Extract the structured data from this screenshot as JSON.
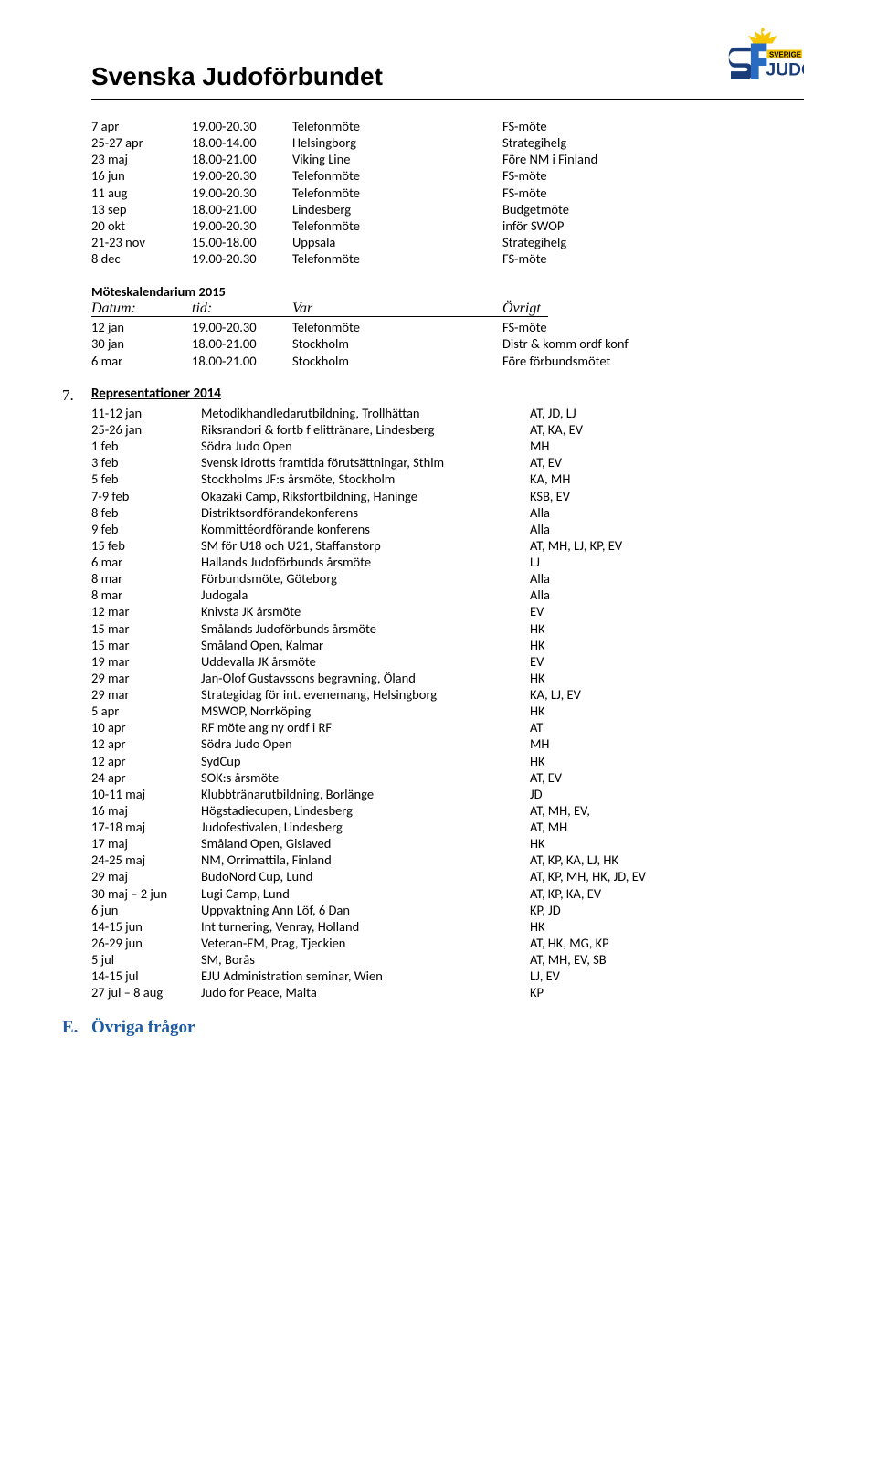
{
  "header": {
    "org_title": "Svenska Judoförbundet",
    "logo": {
      "crown_color": "#f7c600",
      "text_sverige_bg": "#f7c600",
      "text_judo": "JUDO",
      "text_sverige": "SVERIGE",
      "s_blue": "#1a3d7a",
      "f_blue": "#2a6bc2"
    }
  },
  "schedule1": [
    {
      "date": "7 apr",
      "time": "19.00-20.30",
      "what": "Telefonmöte",
      "note": "FS-möte"
    },
    {
      "date": "25-27 apr",
      "time": "18.00-14.00",
      "what": "Helsingborg",
      "note": "Strategihelg"
    },
    {
      "date": "23 maj",
      "time": "18.00-21.00",
      "what": "Viking Line",
      "note": "Före NM i Finland"
    },
    {
      "date": "16 jun",
      "time": "19.00-20.30",
      "what": "Telefonmöte",
      "note": "FS-möte"
    },
    {
      "date": "11 aug",
      "time": "19.00-20.30",
      "what": "Telefonmöte",
      "note": "FS-möte"
    },
    {
      "date": "13 sep",
      "time": "18.00-21.00",
      "what": "Lindesberg",
      "note": "Budgetmöte"
    },
    {
      "date": "20 okt",
      "time": "19.00-20.30",
      "what": "Telefonmöte",
      "note": "inför SWOP"
    },
    {
      "date": "21-23 nov",
      "time": "15.00-18.00",
      "what": "Uppsala",
      "note": "Strategihelg"
    },
    {
      "date": "8 dec",
      "time": "19.00-20.30",
      "what": "Telefonmöte",
      "note": "FS-möte"
    }
  ],
  "calendar2015": {
    "title": "Möteskalendarium 2015",
    "headers": {
      "c1": "Datum:",
      "c2": "tid:",
      "c3": "Var",
      "c4": "Övrigt"
    },
    "rows": [
      {
        "date": "12 jan",
        "time": "19.00-20.30",
        "what": "Telefonmöte",
        "note": "FS-möte"
      },
      {
        "date": "30 jan",
        "time": "18.00-21.00",
        "what": "Stockholm",
        "note": "Distr & komm ordf konf"
      },
      {
        "date": "6 mar",
        "time": "18.00-21.00",
        "what": "Stockholm",
        "note": "Före förbundsmötet"
      }
    ]
  },
  "representations": {
    "number": "7.",
    "title": "Representationer 2014",
    "rows": [
      {
        "date": "11-12 jan",
        "what": "Metodikhandledarutbildning, Trollhättan",
        "who": "AT, JD, LJ"
      },
      {
        "date": "25-26 jan",
        "what": "Riksrandori & fortb f elittränare, Lindesberg",
        "who": "AT, KA, EV"
      },
      {
        "date": "1 feb",
        "what": "Södra Judo Open",
        "who": "MH"
      },
      {
        "date": "3 feb",
        "what": "Svensk idrotts framtida förutsättningar, Sthlm",
        "who": "AT, EV"
      },
      {
        "date": "5 feb",
        "what": "Stockholms JF:s årsmöte, Stockholm",
        "who": "KA, MH"
      },
      {
        "date": "7-9 feb",
        "what": "Okazaki Camp, Riksfortbildning, Haninge",
        "who": "KSB, EV"
      },
      {
        "date": "8 feb",
        "what": "Distriktsordförandekonferens",
        "who": "Alla"
      },
      {
        "date": "9 feb",
        "what": "Kommittéordförande konferens",
        "who": "Alla"
      },
      {
        "date": "15 feb",
        "what": "SM för U18 och U21, Staffanstorp",
        "who": "AT, MH, LJ, KP, EV"
      },
      {
        "date": "6 mar",
        "what": "Hallands Judoförbunds årsmöte",
        "who": "LJ"
      },
      {
        "date": "8 mar",
        "what": "Förbundsmöte, Göteborg",
        "who": "Alla"
      },
      {
        "date": "8 mar",
        "what": "Judogala",
        "who": "Alla"
      },
      {
        "date": "12 mar",
        "what": "Knivsta JK årsmöte",
        "who": "EV"
      },
      {
        "date": "15 mar",
        "what": "Smålands Judoförbunds årsmöte",
        "who": "HK"
      },
      {
        "date": "15 mar",
        "what": "Småland Open, Kalmar",
        "who": "HK"
      },
      {
        "date": "19 mar",
        "what": "Uddevalla JK årsmöte",
        "who": "EV"
      },
      {
        "date": "29 mar",
        "what": "Jan-Olof Gustavssons begravning, Öland",
        "who": "HK"
      },
      {
        "date": "29 mar",
        "what": "Strategidag för int. evenemang, Helsingborg",
        "who": "KA, LJ, EV"
      },
      {
        "date": "5 apr",
        "what": "MSWOP, Norrköping",
        "who": "HK"
      },
      {
        "date": "10 apr",
        "what": "RF möte ang ny ordf i RF",
        "who": "AT"
      },
      {
        "date": "12 apr",
        "what": "Södra Judo Open",
        "who": "MH"
      },
      {
        "date": "12 apr",
        "what": "SydCup",
        "who": "HK"
      },
      {
        "date": "24 apr",
        "what": "SOK:s årsmöte",
        "who": "AT, EV"
      },
      {
        "date": "10-11 maj",
        "what": "Klubbtränarutbildning, Borlänge",
        "who": "JD"
      },
      {
        "date": "16 maj",
        "what": "Högstadiecupen, Lindesberg",
        "who": "AT, MH, EV,"
      },
      {
        "date": "17-18 maj",
        "what": "Judofestivalen, Lindesberg",
        "who": "AT, MH"
      },
      {
        "date": "17 maj",
        "what": "Småland Open, Gislaved",
        "who": "HK"
      },
      {
        "date": "24-25 maj",
        "what": "NM, Orrimattila, Finland",
        "who": "AT, KP, KA, LJ, HK"
      },
      {
        "date": "29 maj",
        "what": "BudoNord Cup, Lund",
        "who": "AT, KP, MH, HK, JD, EV"
      },
      {
        "date": "30 maj – 2 jun",
        "what": "Lugi Camp, Lund",
        "who": "AT, KP, KA, EV"
      },
      {
        "date": "6 jun",
        "what": "Uppvaktning Ann Löf, 6 Dan",
        "who": "KP, JD"
      },
      {
        "date": "14-15 jun",
        "what": "Int turnering, Venray, Holland",
        "who": "HK"
      },
      {
        "date": "26-29 jun",
        "what": "Veteran-EM, Prag, Tjeckien",
        "who": "AT, HK, MG, KP"
      },
      {
        "date": "5 jul",
        "what": "SM, Borås",
        "who": "AT, MH, EV, SB"
      },
      {
        "date": "14-15 jul",
        "what": "EJU Administration seminar, Wien",
        "who": "LJ, EV"
      },
      {
        "date": "27 jul – 8 aug",
        "what": "Judo for Peace, Malta",
        "who": "KP"
      }
    ]
  },
  "sectionE": {
    "letter": "E.",
    "title": "Övriga frågor"
  }
}
